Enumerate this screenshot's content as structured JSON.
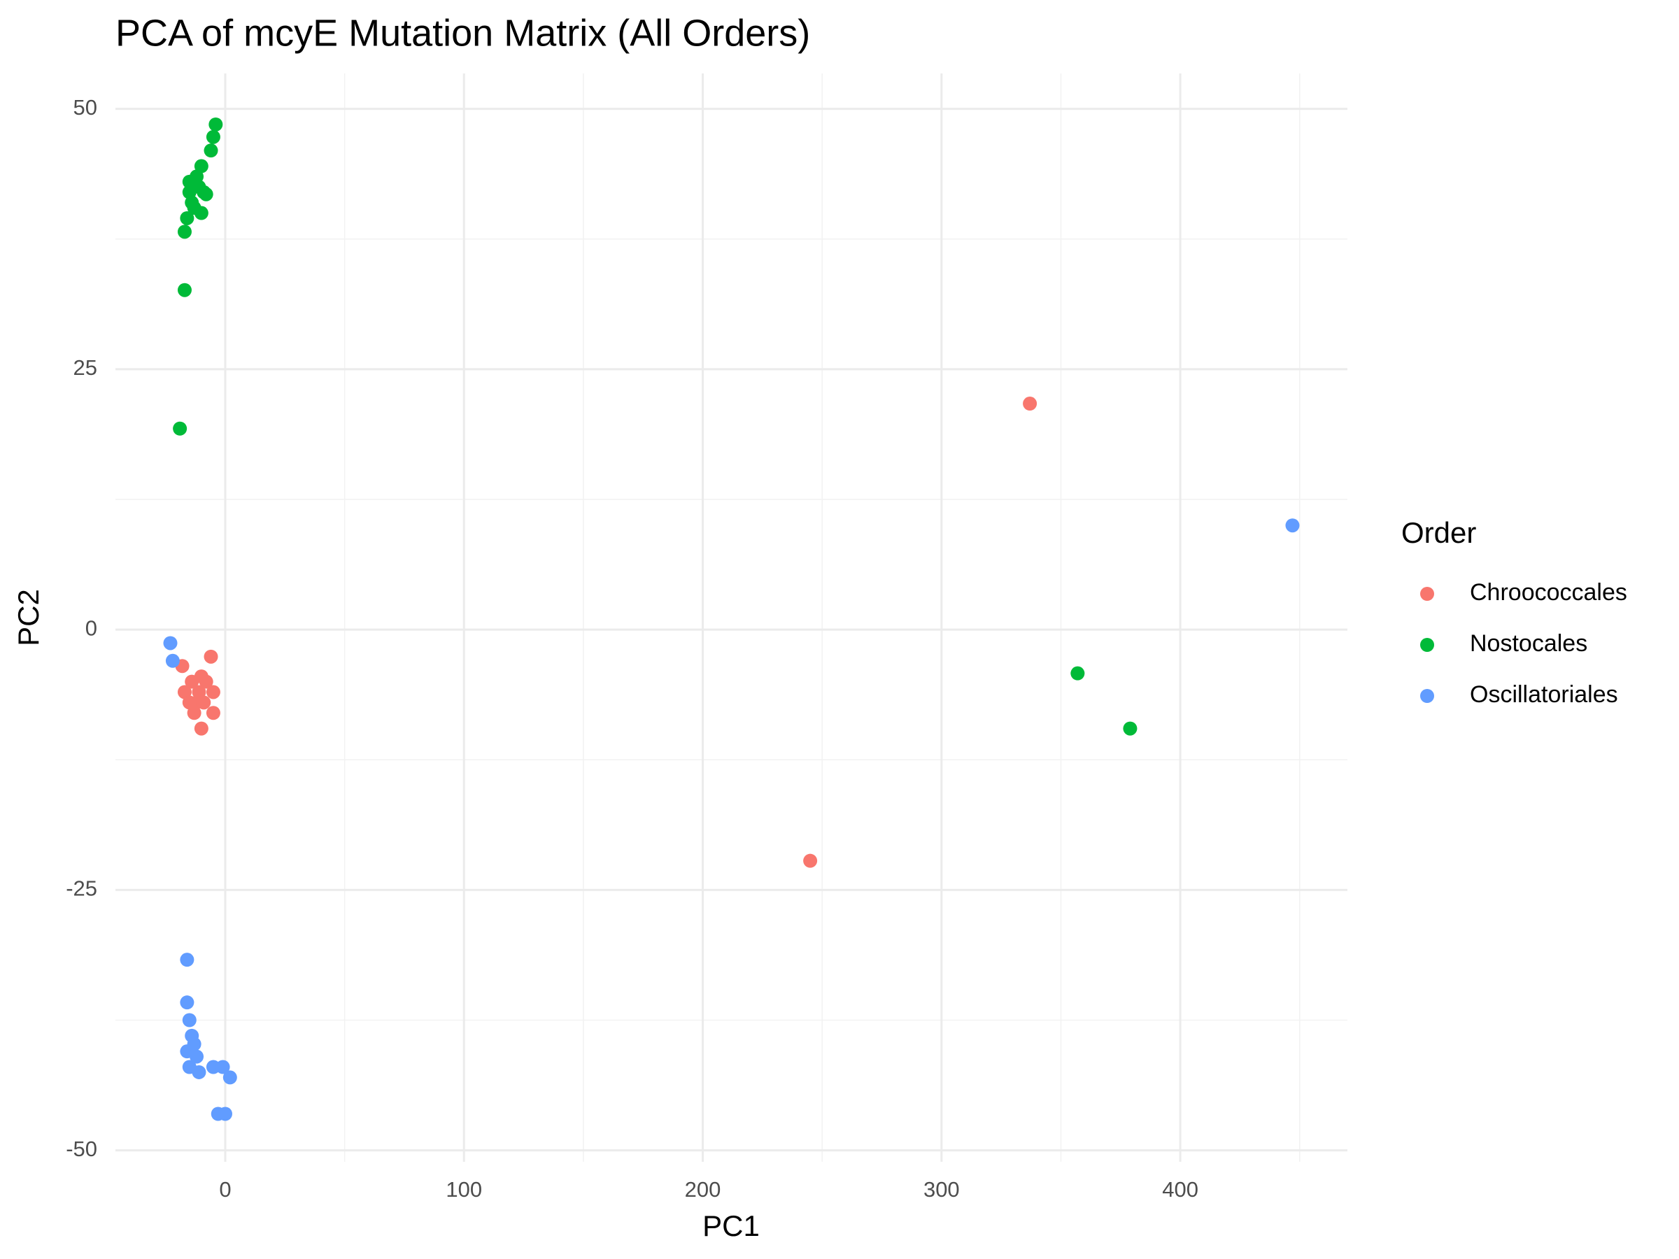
{
  "chart_data": {
    "type": "scatter",
    "title": "PCA of mcyE Mutation Matrix (All Orders)",
    "x_label": "PC1",
    "y_label": "PC2",
    "legend_title": "Order",
    "legend": "right",
    "grid": true,
    "xlim": [
      -46,
      470
    ],
    "xticks": [
      0,
      100,
      200,
      300,
      400
    ],
    "ylim": [
      -51.1,
      53.4
    ],
    "yticks": [
      -50,
      -25,
      0,
      25,
      50
    ],
    "series": [
      {
        "name": "Chroococcales",
        "color": "#F8766D",
        "x": [
          337,
          245,
          -18,
          -6,
          -17,
          -14,
          -12,
          -10,
          -8,
          -5,
          -13,
          -10,
          -5,
          -15,
          -11,
          -9
        ],
        "values": [
          21.7,
          -22.2,
          -3.5,
          -2.6,
          -6,
          -5,
          -7,
          -4.5,
          -5,
          -6,
          -8,
          -9.5,
          -8,
          -7,
          -6,
          -7
        ]
      },
      {
        "name": "Nostocales",
        "color": "#00BA38",
        "x": [
          357,
          379,
          -17,
          -19,
          -4,
          -5,
          -6,
          -10,
          -12,
          -15,
          -14,
          -16,
          -17,
          -9,
          -8,
          -10,
          -13,
          -11,
          -15
        ],
        "values": [
          -4.2,
          -9.5,
          32.6,
          19.3,
          48.5,
          47.3,
          46,
          44.5,
          43.5,
          42,
          41,
          39.5,
          38.2,
          42,
          41.8,
          40,
          40.5,
          42.5,
          43
        ]
      },
      {
        "name": "Oscillatoriales",
        "color": "#619CFF",
        "x": [
          447,
          -23,
          -22,
          -16,
          -16,
          -15,
          -14,
          -16,
          -12,
          -15,
          -11,
          -5,
          -1,
          2,
          -3,
          0,
          -13
        ],
        "values": [
          10,
          -1.3,
          -3,
          -31.7,
          -35.8,
          -37.5,
          -39,
          -40.5,
          -41,
          -42,
          -42.5,
          -42,
          -42,
          -43,
          -46.5,
          -46.5,
          -39.8
        ]
      }
    ]
  }
}
